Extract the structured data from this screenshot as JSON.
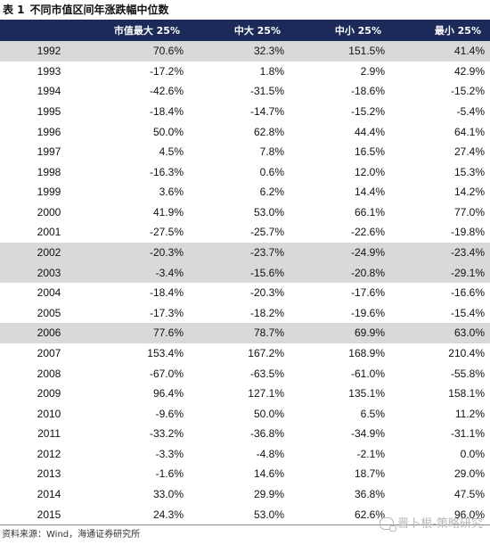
{
  "caption": {
    "label": "表 1",
    "title": "不同市值区间年涨跌幅中位数"
  },
  "table": {
    "headers": [
      "",
      "市值最大 25%",
      "中大 25%",
      "中小 25%",
      "最小 25%"
    ],
    "rows": [
      {
        "year": "1992",
        "values": [
          "70.6%",
          "32.3%",
          "151.5%",
          "41.4%"
        ],
        "highlight": true
      },
      {
        "year": "1993",
        "values": [
          "-17.2%",
          "1.8%",
          "2.9%",
          "42.9%"
        ],
        "highlight": false
      },
      {
        "year": "1994",
        "values": [
          "-42.6%",
          "-31.5%",
          "-18.6%",
          "-15.2%"
        ],
        "highlight": false
      },
      {
        "year": "1995",
        "values": [
          "-18.4%",
          "-14.7%",
          "-15.2%",
          "-5.4%"
        ],
        "highlight": false
      },
      {
        "year": "1996",
        "values": [
          "50.0%",
          "62.8%",
          "44.4%",
          "64.1%"
        ],
        "highlight": false
      },
      {
        "year": "1997",
        "values": [
          "4.5%",
          "7.8%",
          "16.5%",
          "27.4%"
        ],
        "highlight": false
      },
      {
        "year": "1998",
        "values": [
          "-16.3%",
          "0.6%",
          "12.0%",
          "15.3%"
        ],
        "highlight": false
      },
      {
        "year": "1999",
        "values": [
          "3.6%",
          "6.2%",
          "14.4%",
          "14.2%"
        ],
        "highlight": false
      },
      {
        "year": "2000",
        "values": [
          "41.9%",
          "53.0%",
          "66.1%",
          "77.0%"
        ],
        "highlight": false
      },
      {
        "year": "2001",
        "values": [
          "-27.5%",
          "-25.7%",
          "-22.6%",
          "-19.8%"
        ],
        "highlight": false
      },
      {
        "year": "2002",
        "values": [
          "-20.3%",
          "-23.7%",
          "-24.9%",
          "-23.4%"
        ],
        "highlight": true
      },
      {
        "year": "2003",
        "values": [
          "-3.4%",
          "-15.6%",
          "-20.8%",
          "-29.1%"
        ],
        "highlight": true
      },
      {
        "year": "2004",
        "values": [
          "-18.4%",
          "-20.3%",
          "-17.6%",
          "-16.6%"
        ],
        "highlight": false
      },
      {
        "year": "2005",
        "values": [
          "-17.3%",
          "-18.2%",
          "-19.6%",
          "-15.4%"
        ],
        "highlight": false
      },
      {
        "year": "2006",
        "values": [
          "77.6%",
          "78.7%",
          "69.9%",
          "63.0%"
        ],
        "highlight": true
      },
      {
        "year": "2007",
        "values": [
          "153.4%",
          "167.2%",
          "168.9%",
          "210.4%"
        ],
        "highlight": false
      },
      {
        "year": "2008",
        "values": [
          "-67.0%",
          "-63.5%",
          "-61.0%",
          "-55.8%"
        ],
        "highlight": false
      },
      {
        "year": "2009",
        "values": [
          "96.4%",
          "127.1%",
          "135.1%",
          "158.1%"
        ],
        "highlight": false
      },
      {
        "year": "2010",
        "values": [
          "-9.6%",
          "50.0%",
          "6.5%",
          "11.2%"
        ],
        "highlight": false
      },
      {
        "year": "2011",
        "values": [
          "-33.2%",
          "-36.8%",
          "-34.9%",
          "-31.1%"
        ],
        "highlight": false
      },
      {
        "year": "2012",
        "values": [
          "-3.3%",
          "-4.8%",
          "-2.1%",
          "0.0%"
        ],
        "highlight": false
      },
      {
        "year": "2013",
        "values": [
          "-1.6%",
          "14.6%",
          "18.7%",
          "29.0%"
        ],
        "highlight": false
      },
      {
        "year": "2014",
        "values": [
          "33.0%",
          "29.9%",
          "36.8%",
          "47.5%"
        ],
        "highlight": false
      },
      {
        "year": "2015",
        "values": [
          "24.3%",
          "53.0%",
          "62.6%",
          "96.0%"
        ],
        "highlight": false
      }
    ]
  },
  "footer": {
    "source": "资料来源：Wind，海通证券研究所"
  },
  "watermark": {
    "text": "晋卜根-策略研究",
    "icon": "wechat-icon"
  },
  "colors": {
    "header_bg": "#1b2a59",
    "highlight_bg": "#d9d9d9"
  }
}
